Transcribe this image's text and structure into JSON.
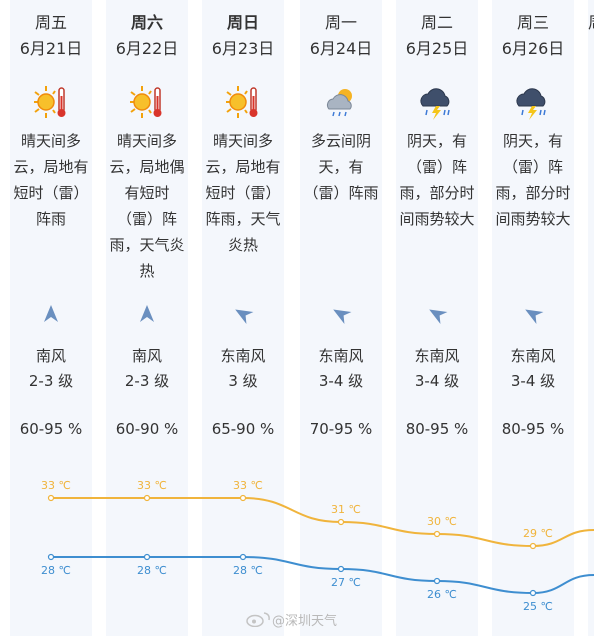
{
  "days": [
    {
      "day": "周五",
      "date": "6月21日",
      "bold": false,
      "icon": "sunny-hot-icon",
      "desc": "晴天间多云，局地有短时（雷）阵雨",
      "desc_lines": [
        "晴天间多",
        "云，局地有",
        "短时（雷）",
        "阵雨"
      ],
      "wind_dir": "南风",
      "wind_level": "2-3 级",
      "wind_angle": 0,
      "humidity": "60-95 %",
      "high": "33 ℃",
      "low": "28 ℃",
      "high_v": 33,
      "low_v": 28
    },
    {
      "day": "周六",
      "date": "6月22日",
      "bold": true,
      "icon": "sunny-hot-icon",
      "desc": "晴天间多云，局地偶有短时（雷）阵雨，天气炎热",
      "desc_lines": [
        "晴天间多",
        "云，局地偶",
        "有短时",
        "（雷）阵",
        "雨，天气炎",
        "热"
      ],
      "wind_dir": "南风",
      "wind_level": "2-3 级",
      "wind_angle": 0,
      "humidity": "60-90 %",
      "high": "33 ℃",
      "low": "28 ℃",
      "high_v": 33,
      "low_v": 28
    },
    {
      "day": "周日",
      "date": "6月23日",
      "bold": true,
      "icon": "sunny-hot-icon",
      "desc": "晴天间多云，局地有短时（雷）阵雨，天气炎热",
      "desc_lines": [
        "晴天间多",
        "云，局地有",
        "短时（雷）",
        "阵雨，天气",
        "炎热"
      ],
      "wind_dir": "东南风",
      "wind_level": "3 级",
      "wind_angle": -60,
      "humidity": "65-90 %",
      "high": "33 ℃",
      "low": "28 ℃",
      "high_v": 33,
      "low_v": 28
    },
    {
      "day": "周一",
      "date": "6月24日",
      "bold": false,
      "icon": "cloudy-rain-icon",
      "desc": "多云间阴天，有（雷）阵雨",
      "desc_lines": [
        "多云间阴",
        "天，有",
        "（雷）阵雨"
      ],
      "wind_dir": "东南风",
      "wind_level": "3-4 级",
      "wind_angle": -60,
      "humidity": "70-95 %",
      "high": "31 ℃",
      "low": "27 ℃",
      "high_v": 31,
      "low_v": 27
    },
    {
      "day": "周二",
      "date": "6月25日",
      "bold": false,
      "icon": "thunderstorm-icon",
      "desc": "阴天，有（雷）阵雨，部分时间雨势较大",
      "desc_lines": [
        "阴天，有",
        "（雷）阵",
        "雨，部分时",
        "间雨势较大"
      ],
      "wind_dir": "东南风",
      "wind_level": "3-4 级",
      "wind_angle": -60,
      "humidity": "80-95 %",
      "high": "30 ℃",
      "low": "26 ℃",
      "high_v": 30,
      "low_v": 26
    },
    {
      "day": "周三",
      "date": "6月26日",
      "bold": false,
      "icon": "thunderstorm-icon",
      "desc": "阴天，有（雷）阵雨，部分时间雨势较大",
      "desc_lines": [
        "阴天，有",
        "（雷）阵",
        "雨，部分时",
        "间雨势较大"
      ],
      "wind_dir": "东南风",
      "wind_level": "3-4 级",
      "wind_angle": -60,
      "humidity": "80-95 %",
      "high": "29 ℃",
      "low": "25 ℃",
      "high_v": 29,
      "low_v": 25
    }
  ],
  "partial_day": {
    "day": "周",
    "icon": "partial-icon"
  },
  "colors": {
    "high": "#f0b43c",
    "low": "#3e8ed0",
    "arrow": "#6a8fbf",
    "column": "#f4f7fc"
  },
  "watermark": "微博 @深圳天气",
  "watermark_text": "@深圳天气"
}
